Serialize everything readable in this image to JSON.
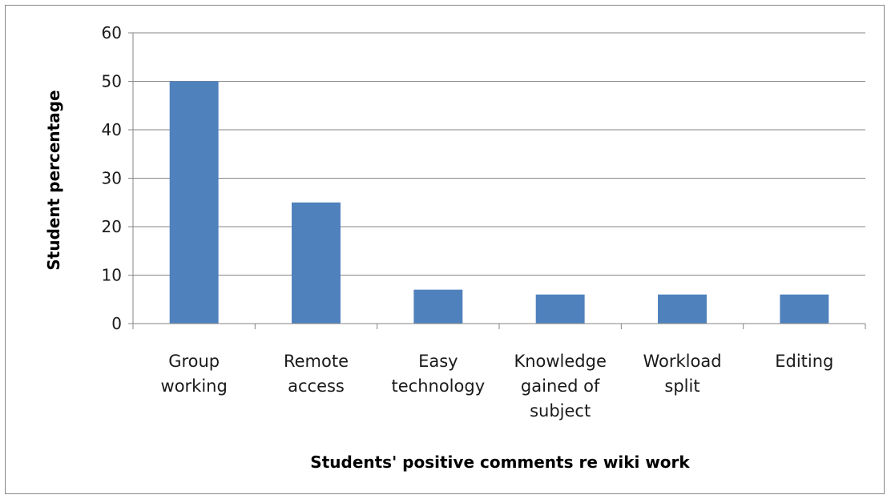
{
  "chart_data": {
    "type": "bar",
    "title": "",
    "xlabel": "Students' positive comments re wiki work",
    "ylabel": "Student percentage",
    "categories": [
      [
        "Group",
        "working"
      ],
      [
        "Remote",
        "access"
      ],
      [
        "Easy",
        "technology"
      ],
      [
        "Knowledge",
        "gained of",
        "subject"
      ],
      [
        "Workload",
        "split"
      ],
      [
        "Editing"
      ]
    ],
    "values": [
      50,
      25,
      7,
      6,
      6,
      6
    ],
    "ylim": [
      0,
      60
    ],
    "yticks": [
      0,
      10,
      20,
      30,
      40,
      50,
      60
    ],
    "grid": true,
    "legend": "none",
    "colors": {
      "bar": "#4F81BD",
      "grid": "#868686",
      "axis": "#868686"
    }
  }
}
